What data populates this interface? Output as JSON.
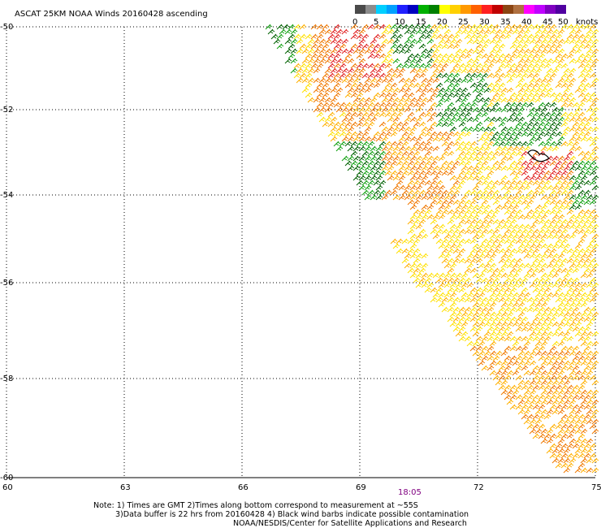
{
  "header": {
    "title": "ASCAT 25KM NOAA Winds 20160428 ascending",
    "units_label": "knots"
  },
  "color_scale": {
    "bins": [
      "#4a4a4a",
      "#8c8c8c",
      "#00cfff",
      "#00a0ff",
      "#2020ff",
      "#0000c0",
      "#00b000",
      "#008000",
      "#ffff00",
      "#ffd000",
      "#ff9900",
      "#ff6000",
      "#ff2020",
      "#c00000",
      "#8b4513",
      "#b07040",
      "#ff00ff",
      "#c000ff",
      "#8000c0",
      "#5000a0"
    ],
    "tick_labels": [
      "0",
      "5",
      "10",
      "15",
      "20",
      "25",
      "30",
      "35",
      "40",
      "45",
      "50"
    ]
  },
  "axes": {
    "lat_labels": [
      "-50",
      "-52",
      "-54",
      "-56",
      "-58",
      "-60"
    ],
    "lon_labels": [
      "60",
      "63",
      "66",
      "69",
      "72",
      "75"
    ]
  },
  "time_label": "18:05",
  "notes": [
    "Note: 1) Times are GMT 2)Times along bottom correspond to measurement at ~55S",
    "3)Data buffer is 22 hrs from 20160428 4) Black wind barbs indicate possible contamination",
    "NOAA/NESDIS/Center for Satellite Applications and Research"
  ],
  "swath": {
    "wind_colors": {
      "light": "#ffe000",
      "mid": "#ffb000",
      "orange": "#f07800",
      "red": "#e02020",
      "green": "#10a010",
      "dark_green": "#006000"
    }
  }
}
